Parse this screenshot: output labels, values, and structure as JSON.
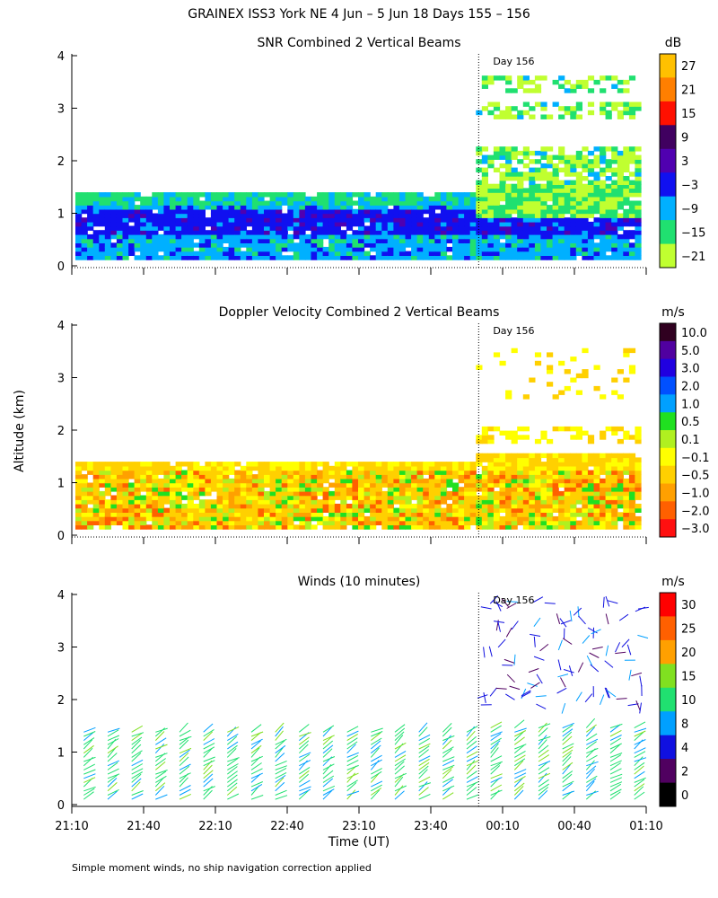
{
  "figure_title": "GRAINEX ISS3 York NE   4 Jun –  5 Jun 18 Days 155 – 156",
  "ylabel": "Altitude (km)",
  "xlabel": "Time (UT)",
  "footnote": "Simple moment winds, no ship navigation correction applied",
  "day_marker": {
    "label": "Day 156",
    "time": "00:00"
  },
  "chart_data": [
    {
      "type": "heatmap",
      "title": "SNR Combined 2 Vertical Beams",
      "units": "dB",
      "x_ticks": [
        "21:10",
        "21:40",
        "22:10",
        "22:40",
        "23:10",
        "23:40",
        "00:10",
        "00:40",
        "01:10"
      ],
      "y_ticks": [
        "0",
        "1",
        "2",
        "3",
        "4"
      ],
      "ylim": [
        0,
        4
      ],
      "colorbar_ticks": [
        "27",
        "21",
        "15",
        "9",
        "3",
        "−3",
        "−9",
        "−15",
        "−21"
      ],
      "colorbar_colors": [
        "#ffc000",
        "#ff7f00",
        "#ff1000",
        "#400060",
        "#5000b0",
        "#1010f0",
        "#00b0ff",
        "#20e070",
        "#c0ff30"
      ],
      "layers": [
        {
          "alt_range": [
            0.1,
            1.4
          ],
          "time_range": [
            "21:10",
            "00:00"
          ],
          "dominant": "-9 to -15"
        },
        {
          "alt_range": [
            0.6,
            1.0
          ],
          "time_range": [
            "21:10",
            "01:10"
          ],
          "dominant": "-3 to 3"
        },
        {
          "alt_range": [
            1.5,
            2.2
          ],
          "time_range": [
            "00:00",
            "01:10"
          ],
          "dominant": "-15 to -21"
        },
        {
          "alt_range": [
            2.8,
            3.5
          ],
          "time_range": [
            "00:00",
            "01:10"
          ],
          "dominant": "-21"
        }
      ]
    },
    {
      "type": "heatmap",
      "title": "Doppler Velocity Combined 2 Vertical Beams",
      "units": "m/s",
      "x_ticks": [
        "21:10",
        "21:40",
        "22:10",
        "22:40",
        "23:10",
        "23:40",
        "00:10",
        "00:40",
        "01:10"
      ],
      "y_ticks": [
        "0",
        "1",
        "2",
        "3",
        "4"
      ],
      "ylim": [
        0,
        4
      ],
      "colorbar_ticks": [
        "10.0",
        "5.0",
        "3.0",
        "2.0",
        "1.0",
        "0.5",
        "0.1",
        "−0.1",
        "−0.5",
        "−1.0",
        "−2.0",
        "−3.0"
      ],
      "colorbar_colors": [
        "#300020",
        "#5000a0",
        "#2000e0",
        "#0050ff",
        "#00a0ff",
        "#20e020",
        "#b0f020",
        "#ffff00",
        "#ffd000",
        "#ffa000",
        "#ff6000",
        "#ff1010"
      ],
      "layers": [
        {
          "alt_range": [
            0.1,
            1.4
          ],
          "time_range": [
            "21:10",
            "01:10"
          ],
          "dominant": "-0.1 to -1.0"
        },
        {
          "alt_range": [
            1.7,
            2.0
          ],
          "time_range": [
            "00:00",
            "01:10"
          ],
          "dominant": "-0.1 to -0.5"
        },
        {
          "alt_range": [
            2.5,
            3.5
          ],
          "time_range": [
            "00:10",
            "01:00"
          ],
          "dominant": "-0.1"
        }
      ]
    },
    {
      "type": "wind_barbs",
      "title": "Winds (10 minutes)",
      "units": "m/s",
      "x_ticks": [
        "21:10",
        "21:40",
        "22:10",
        "22:40",
        "23:10",
        "23:40",
        "00:10",
        "00:40",
        "01:10"
      ],
      "y_ticks": [
        "0",
        "1",
        "2",
        "3",
        "4"
      ],
      "ylim": [
        0,
        4
      ],
      "colorbar_ticks": [
        "30",
        "25",
        "20",
        "15",
        "10",
        "8",
        "4",
        "2",
        "0"
      ],
      "colorbar_colors": [
        "#ff0000",
        "#ff6000",
        "#ffa000",
        "#80e020",
        "#20e070",
        "#00a0ff",
        "#1010e0",
        "#500060",
        "#000000"
      ],
      "profiles": {
        "interval_minutes": 10,
        "start": "21:10",
        "end": "01:10",
        "max_alt_before_day156_km": 1.4,
        "max_alt_after_day156_km": 4.0
      }
    }
  ]
}
